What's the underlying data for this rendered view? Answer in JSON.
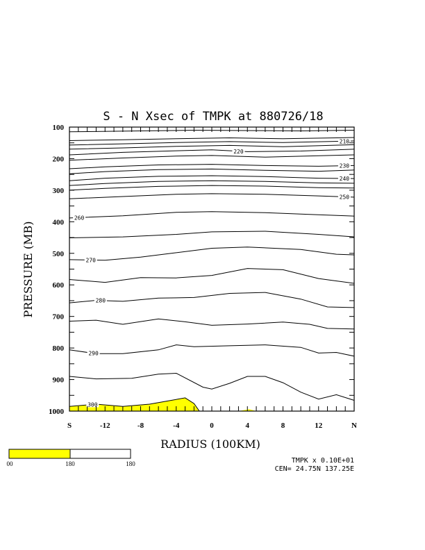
{
  "chart_data": {
    "type": "contour",
    "title": "S - N Xsec of TMPK at 880726/18",
    "xlabel": "RADIUS (100KM)",
    "ylabel": "PRESSURE (MB)",
    "xlim": [
      -16,
      16
    ],
    "ylim": [
      1000,
      100
    ],
    "x_ticks": [
      {
        "value": -16,
        "label": "S"
      },
      {
        "value": -12,
        "label": "-12"
      },
      {
        "value": -8,
        "label": "-8"
      },
      {
        "value": -4,
        "label": "-4"
      },
      {
        "value": 0,
        "label": "0"
      },
      {
        "value": 4,
        "label": "4"
      },
      {
        "value": 8,
        "label": "8"
      },
      {
        "value": 12,
        "label": "12"
      },
      {
        "value": 16,
        "label": "N"
      }
    ],
    "y_ticks": [
      100,
      200,
      300,
      400,
      500,
      600,
      700,
      800,
      900,
      1000
    ],
    "contour_interval": 2,
    "contours": [
      {
        "level": "",
        "points": [
          [
            -16,
            115
          ],
          [
            -8,
            112
          ],
          [
            -2,
            110
          ],
          [
            4,
            111
          ],
          [
            10,
            112
          ],
          [
            16,
            110
          ]
        ]
      },
      {
        "level": "",
        "points": [
          [
            -16,
            143
          ],
          [
            -10,
            140
          ],
          [
            -4,
            137
          ],
          [
            2,
            134
          ],
          [
            8,
            137
          ],
          [
            14,
            134
          ],
          [
            16,
            133
          ]
        ]
      },
      {
        "level": "210",
        "label_at": 14.9,
        "points": [
          [
            -16,
            157
          ],
          [
            -10,
            153
          ],
          [
            -4,
            149
          ],
          [
            2,
            146
          ],
          [
            8,
            149
          ],
          [
            16,
            144
          ]
        ]
      },
      {
        "level": "",
        "points": [
          [
            -16,
            170
          ],
          [
            -10,
            166
          ],
          [
            -4,
            161
          ],
          [
            2,
            158
          ],
          [
            8,
            162
          ],
          [
            16,
            156
          ]
        ]
      },
      {
        "level": "220",
        "label_at": 3,
        "points": [
          [
            -16,
            188
          ],
          [
            -10,
            180
          ],
          [
            -4,
            175
          ],
          [
            0,
            172
          ],
          [
            4,
            178
          ],
          [
            10,
            176
          ],
          [
            16,
            170
          ]
        ]
      },
      {
        "level": "",
        "points": [
          [
            -16,
            205
          ],
          [
            -10,
            198
          ],
          [
            -4,
            192
          ],
          [
            0,
            190
          ],
          [
            6,
            195
          ],
          [
            16,
            188
          ]
        ]
      },
      {
        "level": "230",
        "label_at": 14.9,
        "points": [
          [
            -16,
            232
          ],
          [
            -12,
            226
          ],
          [
            -6,
            220
          ],
          [
            0,
            218
          ],
          [
            6,
            222
          ],
          [
            12,
            224
          ],
          [
            16,
            222
          ]
        ]
      },
      {
        "level": "",
        "points": [
          [
            -16,
            248
          ],
          [
            -12,
            241
          ],
          [
            -6,
            235
          ],
          [
            0,
            233
          ],
          [
            6,
            237
          ],
          [
            12,
            240
          ],
          [
            16,
            236
          ]
        ]
      },
      {
        "level": "240",
        "label_at": 14.9,
        "points": [
          [
            -16,
            270
          ],
          [
            -12,
            262
          ],
          [
            -6,
            256
          ],
          [
            0,
            254
          ],
          [
            6,
            257
          ],
          [
            12,
            262
          ],
          [
            16,
            263
          ]
        ]
      },
      {
        "level": "",
        "points": [
          [
            -16,
            285
          ],
          [
            -12,
            279
          ],
          [
            -6,
            272
          ],
          [
            0,
            270
          ],
          [
            6,
            272
          ],
          [
            12,
            277
          ],
          [
            16,
            278
          ]
        ]
      },
      {
        "level": "",
        "points": [
          [
            -16,
            300
          ],
          [
            -12,
            294
          ],
          [
            -6,
            288
          ],
          [
            0,
            285
          ],
          [
            6,
            287
          ],
          [
            12,
            292
          ],
          [
            16,
            293
          ]
        ]
      },
      {
        "level": "250",
        "label_at": 14.9,
        "points": [
          [
            -16,
            327
          ],
          [
            -10,
            320
          ],
          [
            -4,
            313
          ],
          [
            0,
            311
          ],
          [
            6,
            313
          ],
          [
            12,
            318
          ],
          [
            16,
            322
          ]
        ]
      },
      {
        "level": "260",
        "label_at": -14.9,
        "points": [
          [
            -16,
            388
          ],
          [
            -10,
            381
          ],
          [
            -4,
            370
          ],
          [
            0,
            368
          ],
          [
            6,
            371
          ],
          [
            12,
            378
          ],
          [
            16,
            382
          ]
        ]
      },
      {
        "level": "",
        "points": [
          [
            -16,
            451
          ],
          [
            -10,
            448
          ],
          [
            -4,
            440
          ],
          [
            0,
            432
          ],
          [
            6,
            430
          ],
          [
            12,
            440
          ],
          [
            16,
            448
          ]
        ]
      },
      {
        "level": "270",
        "label_at": -13.6,
        "points": [
          [
            -16,
            520
          ],
          [
            -12,
            522
          ],
          [
            -8,
            512
          ],
          [
            -4,
            498
          ],
          [
            0,
            484
          ],
          [
            4,
            480
          ],
          [
            10,
            488
          ],
          [
            14,
            503
          ],
          [
            16,
            505
          ]
        ]
      },
      {
        "level": "",
        "points": [
          [
            -16,
            583
          ],
          [
            -12,
            592
          ],
          [
            -8,
            577
          ],
          [
            -4,
            578
          ],
          [
            0,
            570
          ],
          [
            4,
            548
          ],
          [
            8,
            552
          ],
          [
            12,
            580
          ],
          [
            16,
            595
          ]
        ]
      },
      {
        "level": "280",
        "label_at": -12.5,
        "points": [
          [
            -16,
            657
          ],
          [
            -13,
            649
          ],
          [
            -10,
            652
          ],
          [
            -6,
            642
          ],
          [
            -2,
            640
          ],
          [
            2,
            627
          ],
          [
            6,
            624
          ],
          [
            10,
            645
          ],
          [
            13,
            670
          ],
          [
            16,
            672
          ]
        ]
      },
      {
        "level": "",
        "points": [
          [
            -16,
            715
          ],
          [
            -13,
            712
          ],
          [
            -10,
            725
          ],
          [
            -6,
            708
          ],
          [
            -3,
            717
          ],
          [
            0,
            728
          ],
          [
            4,
            724
          ],
          [
            8,
            718
          ],
          [
            11,
            725
          ],
          [
            13,
            738
          ],
          [
            16,
            740
          ]
        ]
      },
      {
        "level": "290",
        "label_at": -13.3,
        "points": [
          [
            -16,
            806
          ],
          [
            -13,
            818
          ],
          [
            -10,
            818
          ],
          [
            -6,
            806
          ],
          [
            -4,
            790
          ],
          [
            -2,
            796
          ],
          [
            2,
            793
          ],
          [
            6,
            790
          ],
          [
            10,
            798
          ],
          [
            12,
            816
          ],
          [
            14,
            814
          ],
          [
            16,
            826
          ]
        ]
      },
      {
        "level": "",
        "points": [
          [
            -16,
            890
          ],
          [
            -13,
            898
          ],
          [
            -9,
            896
          ],
          [
            -6,
            883
          ],
          [
            -4,
            880
          ],
          [
            -1,
            924
          ],
          [
            0,
            930
          ],
          [
            2,
            912
          ],
          [
            4,
            890
          ],
          [
            6,
            890
          ],
          [
            8,
            910
          ],
          [
            10,
            940
          ],
          [
            12,
            962
          ],
          [
            14,
            948
          ],
          [
            16,
            966
          ]
        ]
      },
      {
        "level": "300",
        "label_at": -13.4,
        "points": [
          [
            -16,
            985
          ],
          [
            -13,
            978
          ],
          [
            -10,
            985
          ],
          [
            -7,
            978
          ],
          [
            -5,
            968
          ],
          [
            -3,
            958
          ],
          [
            -2,
            976
          ],
          [
            -1.4,
            1000
          ]
        ]
      }
    ],
    "shaded_regions": [
      {
        "points": [
          [
            -16,
            1000
          ],
          [
            -16,
            985
          ],
          [
            -13,
            978
          ],
          [
            -10,
            985
          ],
          [
            -7,
            978
          ],
          [
            -5,
            968
          ],
          [
            -3,
            958
          ],
          [
            -2,
            976
          ],
          [
            -1.4,
            1000
          ]
        ]
      },
      {
        "points": [
          [
            3,
            1000
          ],
          [
            4.2,
            994
          ],
          [
            5,
            1000
          ]
        ]
      }
    ],
    "colorbar": {
      "colors": [
        "#ffff00",
        "#ffffff"
      ],
      "labels": [
        "00",
        "180",
        "180"
      ]
    },
    "info_lines": [
      "TMPK x  0.10E+01",
      "CEN= 24.75N  137.25E"
    ]
  }
}
